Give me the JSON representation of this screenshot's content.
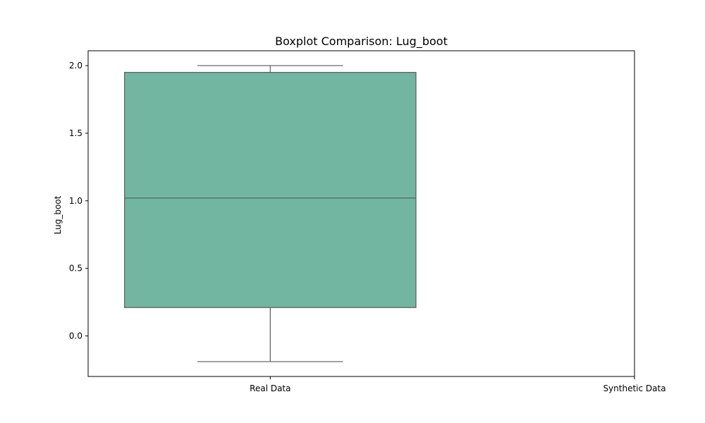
{
  "chart_data": {
    "type": "box",
    "title": "Boxplot Comparison: Lug_boot",
    "xlabel": "",
    "ylabel": "Lug_boot",
    "categories": [
      "Real Data",
      "Synthetic Data"
    ],
    "yticks": [
      "0.0",
      "0.5",
      "1.0",
      "1.5",
      "2.0"
    ],
    "ylim": [
      -0.3,
      2.11
    ],
    "boxes": [
      {
        "category": "Real Data",
        "whisker_low": -0.19,
        "q1": 0.21,
        "median": 1.02,
        "q3": 1.95,
        "whisker_high": 2.0
      },
      {
        "category": "Synthetic Data",
        "whisker_low": null,
        "q1": null,
        "median": null,
        "q3": null,
        "whisker_high": null
      }
    ],
    "grid": false,
    "colors": {
      "box_fill": "#72b6a1",
      "box_edge": "#595959",
      "axis": "#000000"
    }
  }
}
